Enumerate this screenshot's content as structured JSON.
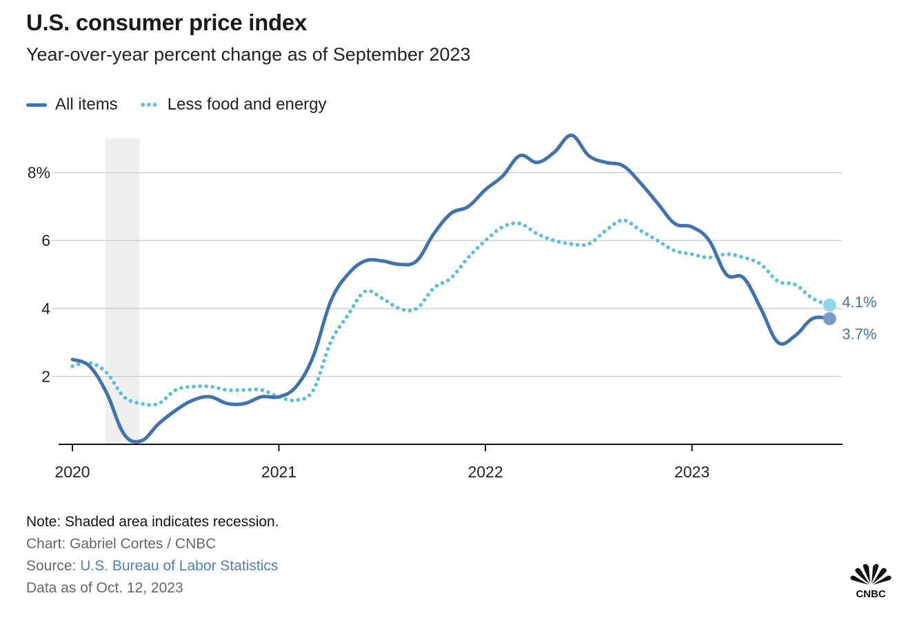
{
  "header": {
    "title": "U.S. consumer price index",
    "subtitle": "Year-over-year percent change as of September 2023"
  },
  "legend": [
    {
      "label": "All items",
      "style": "solid",
      "color": "#3d72b4"
    },
    {
      "label": "Less food and energy",
      "style": "dotted",
      "color": "#55c1e3"
    }
  ],
  "footer": {
    "note": "Note: Shaded area indicates recession.",
    "chart_credit": "Chart: Gabriel Cortes / CNBC",
    "source_prefix": "Source: ",
    "source_link": "U.S. Bureau of Labor Statistics",
    "data_as_of": "Data as of Oct. 12, 2023",
    "logo": "cnbc-peacock-logo",
    "logo_text": "CNBC"
  },
  "chart_data": {
    "type": "line",
    "title": "U.S. consumer price index",
    "subtitle": "Year-over-year percent change as of September 2023",
    "xlabel": "",
    "ylabel": "",
    "x_start": "2020-01",
    "x_end": "2023-09",
    "x_ticks": [
      {
        "label": "2020",
        "month_index": 0
      },
      {
        "label": "2021",
        "month_index": 12
      },
      {
        "label": "2022",
        "month_index": 24
      },
      {
        "label": "2023",
        "month_index": 36
      }
    ],
    "y_ticks": [
      {
        "value": 2,
        "label": "2"
      },
      {
        "value": 4,
        "label": "4"
      },
      {
        "value": 6,
        "label": "6"
      },
      {
        "value": 8,
        "label": "8%"
      }
    ],
    "ylim": [
      0,
      9
    ],
    "grid": true,
    "legend_position": "top-left",
    "recession_shading": {
      "start_month_index": 1.9,
      "end_month_index": 3.9,
      "label": "recession"
    },
    "colors": {
      "all_items": "#3d72b4",
      "core": "#55c1e3",
      "grid": "#cccccc",
      "axis": "#111111",
      "recession": "#efefef"
    },
    "series": [
      {
        "name": "All items",
        "style": "solid",
        "values": [
          2.5,
          2.3,
          1.5,
          0.3,
          0.1,
          0.6,
          1.0,
          1.3,
          1.4,
          1.2,
          1.2,
          1.4,
          1.4,
          1.7,
          2.6,
          4.2,
          5.0,
          5.4,
          5.4,
          5.3,
          5.4,
          6.2,
          6.8,
          7.0,
          7.5,
          7.9,
          8.5,
          8.3,
          8.6,
          9.1,
          8.5,
          8.3,
          8.2,
          7.7,
          7.1,
          6.5,
          6.4,
          6.0,
          5.0,
          4.9,
          4.0,
          3.0,
          3.2,
          3.7,
          3.7
        ],
        "end_label": "3.7%"
      },
      {
        "name": "Less food and energy",
        "style": "dotted",
        "values": [
          2.3,
          2.4,
          2.1,
          1.4,
          1.2,
          1.2,
          1.6,
          1.7,
          1.7,
          1.6,
          1.6,
          1.6,
          1.4,
          1.3,
          1.6,
          3.0,
          3.8,
          4.5,
          4.3,
          4.0,
          4.0,
          4.6,
          4.9,
          5.5,
          6.0,
          6.4,
          6.5,
          6.2,
          6.0,
          5.9,
          5.9,
          6.3,
          6.6,
          6.3,
          6.0,
          5.7,
          5.6,
          5.5,
          5.6,
          5.5,
          5.3,
          4.8,
          4.7,
          4.3,
          4.1
        ],
        "end_label": "4.1%"
      }
    ]
  }
}
